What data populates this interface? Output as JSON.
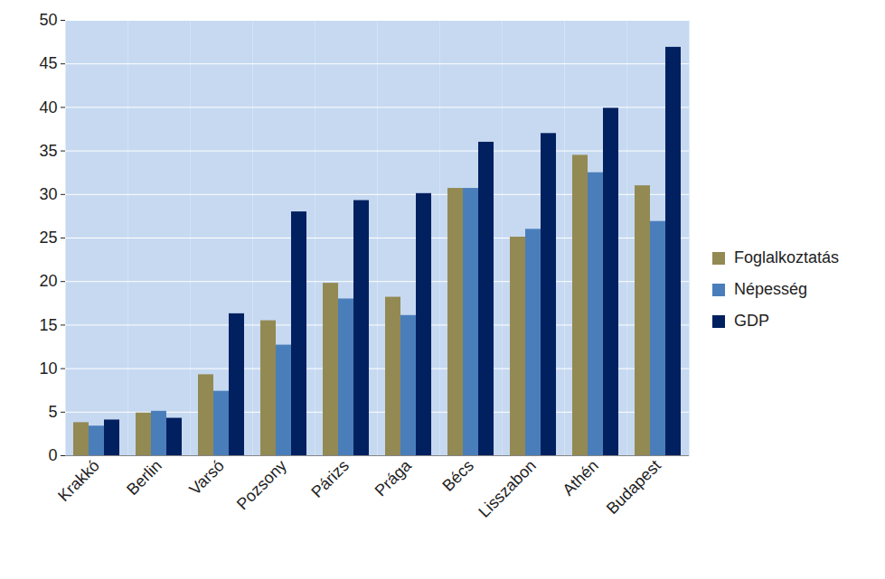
{
  "chart_data": {
    "type": "bar",
    "categories": [
      "Krakkó",
      "Berlin",
      "Varsó",
      "Pozsony",
      "Párizs",
      "Prága",
      "Bécs",
      "Lisszabon",
      "Athén",
      "Budapest"
    ],
    "series": [
      {
        "name": "Foglalkoztatás",
        "color": "#938953",
        "values": [
          3.8,
          4.9,
          9.3,
          15.5,
          19.8,
          18.2,
          30.7,
          25.1,
          34.5,
          31.0
        ]
      },
      {
        "name": "Népesség",
        "color": "#4a7ebb",
        "values": [
          3.4,
          5.1,
          7.4,
          12.7,
          18.0,
          16.1,
          30.7,
          26.0,
          32.5,
          26.9
        ]
      },
      {
        "name": "GDP",
        "color": "#002060",
        "values": [
          4.1,
          4.3,
          16.3,
          28.0,
          29.3,
          30.1,
          36.0,
          37.0,
          39.9,
          46.9
        ]
      }
    ],
    "ylim": [
      0,
      50
    ],
    "yticks": [
      0,
      5,
      10,
      15,
      20,
      25,
      30,
      35,
      40,
      45,
      50
    ],
    "grid": true,
    "legend": "right"
  }
}
